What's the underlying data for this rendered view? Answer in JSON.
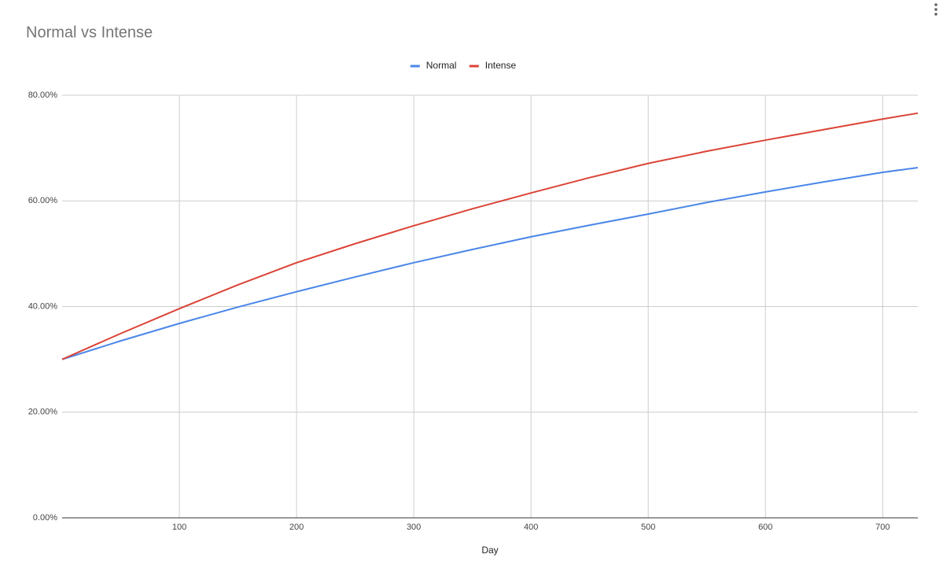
{
  "chart_data": {
    "type": "line",
    "title": "Normal vs Intense",
    "x_label": "Day",
    "x": [
      0,
      50,
      100,
      150,
      200,
      250,
      300,
      350,
      400,
      450,
      500,
      550,
      600,
      650,
      700,
      730
    ],
    "series": [
      {
        "name": "Normal",
        "color": "#4a86e8",
        "values": [
          30,
          33.5,
          36.8,
          39.9,
          42.8,
          45.6,
          48.3,
          50.8,
          53.2,
          55.4,
          57.5,
          59.7,
          61.7,
          63.6,
          65.4,
          66.3
        ]
      },
      {
        "name": "Intense",
        "color": "#db4437",
        "values": [
          30,
          34.9,
          39.6,
          44.1,
          48.3,
          51.9,
          55.3,
          58.5,
          61.5,
          64.4,
          67.1,
          69.4,
          71.5,
          73.5,
          75.5,
          76.6
        ]
      }
    ],
    "xlim": [
      0,
      730
    ],
    "xticks": [
      100,
      200,
      300,
      400,
      500,
      600,
      700
    ],
    "ylim": [
      0,
      80
    ],
    "yticks": [
      {
        "value": 0,
        "label": "0.00%"
      },
      {
        "value": 20,
        "label": "20.00%"
      },
      {
        "value": 40,
        "label": "40.00%"
      },
      {
        "value": 60,
        "label": "60.00%"
      },
      {
        "value": 80,
        "label": "80.00%"
      }
    ],
    "grid": true,
    "legend": "top"
  }
}
